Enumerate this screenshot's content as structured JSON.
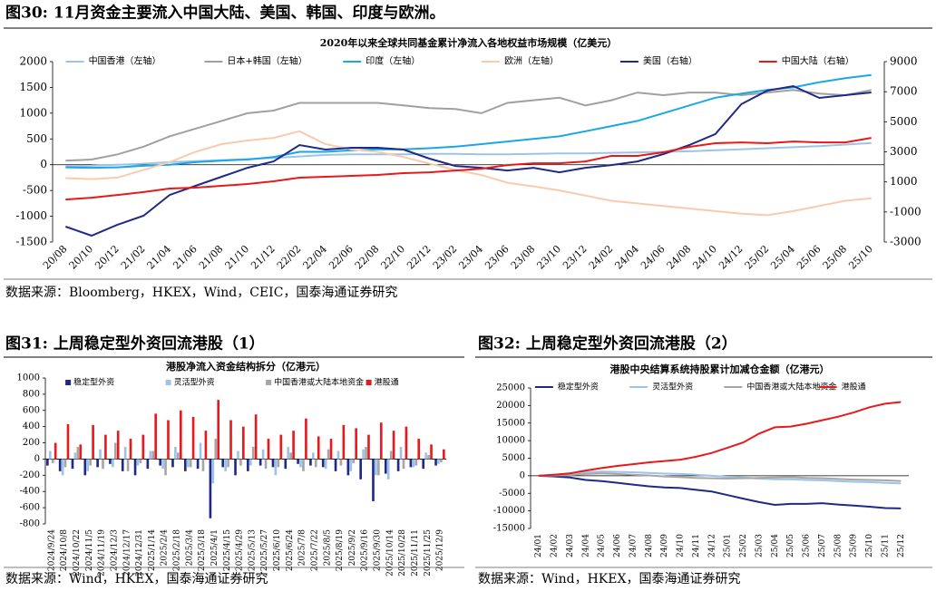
{
  "document": {
    "sections": [
      {
        "heading": "图30:  11月资金主要流入中国大陆、美国、韩国、印度与欧洲。",
        "source": "数据来源：Bloomberg，HKEX，Wind，CEIC，国泰海通证券研究"
      },
      {
        "heading": "图31:  上周稳定型外资回流港股（1）",
        "source": "数据来源：Wind，HKEX，国泰海通证券研究"
      },
      {
        "heading": "图32:  上周稳定型外资回流港股（2）",
        "source": "数据来源：Wind，HKEX，国泰海通证券研究"
      }
    ]
  },
  "chart_data": [
    {
      "type": "line",
      "title": "2020年以来全球共同基金累计净流入各地权益市场规模（亿美元）",
      "categories": [
        "20/08",
        "20/10",
        "20/12",
        "21/02",
        "21/04",
        "21/06",
        "21/08",
        "21/10",
        "21/12",
        "22/02",
        "22/04",
        "22/06",
        "22/08",
        "22/10",
        "22/12",
        "23/02",
        "23/04",
        "23/06",
        "23/08",
        "23/10",
        "23/12",
        "24/02",
        "24/04",
        "24/06",
        "24/08",
        "24/10",
        "24/12",
        "25/02",
        "25/04",
        "25/06",
        "25/08",
        "25/10"
      ],
      "series": [
        {
          "name": "中国香港（左轴）",
          "color": "#9dc3e6",
          "values": [
            -30,
            -20,
            0,
            20,
            50,
            70,
            90,
            110,
            130,
            160,
            190,
            200,
            200,
            200,
            210,
            210,
            200,
            200,
            210,
            220,
            220,
            230,
            240,
            250,
            260,
            280,
            300,
            320,
            340,
            360,
            390,
            420
          ]
        },
        {
          "name": "日本+韩国（左轴）",
          "color": "#a0a0a0",
          "values": [
            80,
            100,
            200,
            350,
            550,
            700,
            850,
            1000,
            1050,
            1200,
            1200,
            1200,
            1200,
            1150,
            1100,
            1080,
            1000,
            1200,
            1250,
            1300,
            1150,
            1250,
            1400,
            1350,
            1400,
            1400,
            1350,
            1400,
            1450,
            1380,
            1350,
            1450
          ]
        },
        {
          "name": "印度（左轴）",
          "color": "#1aa7e6",
          "values": [
            -50,
            -60,
            -50,
            -20,
            0,
            50,
            80,
            100,
            150,
            250,
            250,
            280,
            300,
            300,
            320,
            350,
            400,
            450,
            500,
            550,
            650,
            750,
            850,
            1000,
            1150,
            1300,
            1380,
            1450,
            1500,
            1600,
            1680,
            1740
          ]
        },
        {
          "name": "欧洲（左轴）",
          "color": "#f8cbad",
          "values": [
            -260,
            -280,
            -250,
            -100,
            50,
            250,
            400,
            470,
            520,
            650,
            400,
            300,
            250,
            150,
            20,
            -100,
            -200,
            -350,
            -420,
            -500,
            -600,
            -700,
            -750,
            -800,
            -850,
            -900,
            -950,
            -980,
            -900,
            -800,
            -700,
            -650
          ]
        },
        {
          "name": "美国（右轴）",
          "color": "#1f2a87",
          "axis": "y2",
          "values": [
            -1975,
            -2580,
            -1850,
            -1250,
            130,
            740,
            1340,
            1940,
            2360,
            3450,
            3150,
            3270,
            3270,
            3150,
            2550,
            2060,
            1940,
            1760,
            1940,
            1640,
            1940,
            2120,
            2360,
            2850,
            3450,
            4180,
            6170,
            7070,
            7370,
            6590,
            6770,
            6950
          ]
        },
        {
          "name": "中国大陆（右轴）",
          "color": "#e8191c",
          "axis": "y2",
          "values": [
            -170,
            -50,
            130,
            320,
            560,
            620,
            740,
            860,
            1040,
            1280,
            1340,
            1400,
            1460,
            1580,
            1640,
            1760,
            1880,
            2120,
            2240,
            2240,
            2360,
            2730,
            2730,
            2970,
            3330,
            3570,
            3630,
            3570,
            3690,
            3630,
            3630,
            3930
          ]
        }
      ],
      "ylim": [
        -1500,
        2000
      ],
      "yticks": [
        -1500,
        -1000,
        -500,
        0,
        500,
        1000,
        1500,
        2000
      ],
      "y2lim": [
        -3000,
        9000
      ],
      "y2ticks": [
        -3000,
        -1000,
        1000,
        3000,
        5000,
        7000,
        9000
      ],
      "grid": false
    },
    {
      "type": "bar",
      "title": "港股净流入资金结构拆分（亿港元）",
      "categories": [
        "2024/9/24",
        "2024/10/8",
        "2024/10/22",
        "2024/11/5",
        "2024/11/19",
        "2024/12/3",
        "2024/12/17",
        "2024/12/31",
        "2025/1/14",
        "2025/2/4",
        "2025/2/18",
        "2025/3/4",
        "2025/3/18",
        "2025/4/1",
        "2025/4/15",
        "2025/4/29",
        "2025/5/13",
        "2025/5/27",
        "2025/6/10",
        "2025/6/24",
        "2025/7/8",
        "2025/7/22",
        "2025/8/5",
        "2025/8/19",
        "2025/9/2",
        "2025/9/16",
        "2025/9/30",
        "2025/10/14",
        "2025/10/28",
        "2025/11/11",
        "2025/11/25",
        "2025/12/9"
      ],
      "series": [
        {
          "name": "稳定型外资",
          "color": "#1f2a87",
          "values": [
            -80,
            -150,
            -120,
            -200,
            -100,
            -60,
            -150,
            -200,
            -120,
            -80,
            -100,
            -150,
            -120,
            -730,
            -100,
            -200,
            -150,
            -80,
            -100,
            -120,
            -60,
            -80,
            -100,
            -150,
            -200,
            -250,
            -520,
            -180,
            -150,
            -100,
            -120,
            -80
          ]
        },
        {
          "name": "灵活型外资",
          "color": "#9dc3e6",
          "values": [
            100,
            -200,
            80,
            -150,
            120,
            -100,
            150,
            -80,
            100,
            -120,
            150,
            -100,
            200,
            -300,
            -150,
            100,
            -80,
            120,
            -200,
            150,
            -100,
            80,
            -120,
            100,
            -150,
            120,
            -200,
            -250,
            150,
            -100,
            80,
            -60
          ]
        },
        {
          "name": "中国香港或大陆本地资金",
          "color": "#a6a6a6",
          "values": [
            -50,
            -100,
            150,
            -80,
            -120,
            200,
            -150,
            -50,
            100,
            -200,
            80,
            -100,
            -150,
            250,
            -100,
            -80,
            150,
            -120,
            -100,
            80,
            -150,
            -100,
            120,
            -80,
            -50,
            150,
            -200,
            100,
            -120,
            -80,
            50,
            -40
          ]
        },
        {
          "name": "港股通",
          "color": "#e8191c",
          "values": [
            200,
            430,
            180,
            420,
            300,
            350,
            250,
            300,
            560,
            480,
            600,
            520,
            350,
            730,
            480,
            400,
            550,
            250,
            300,
            350,
            500,
            280,
            250,
            420,
            380,
            300,
            450,
            350,
            400,
            250,
            180,
            120
          ]
        }
      ],
      "ylim": [
        -800,
        1000
      ],
      "yticks": [
        -800,
        -600,
        -400,
        -200,
        0,
        200,
        400,
        600,
        800,
        1000
      ],
      "grid": false
    },
    {
      "type": "line",
      "title": "港股中央结算系统持股累计加减仓金额（亿港元）",
      "categories": [
        "24/01",
        "24/02",
        "24/03",
        "24/04",
        "24/05",
        "24/06",
        "24/07",
        "24/08",
        "24/09",
        "24/10",
        "24/11",
        "24/12",
        "25/01",
        "25/02",
        "25/03",
        "25/04",
        "25/05",
        "25/06",
        "25/07",
        "25/08",
        "25/09",
        "25/10",
        "25/11",
        "25/12"
      ],
      "series": [
        {
          "name": "稳定型外资",
          "color": "#1f2a87",
          "values": [
            0,
            -200,
            -500,
            -1200,
            -1500,
            -2000,
            -2500,
            -3000,
            -3300,
            -3500,
            -4000,
            -4500,
            -5500,
            -6500,
            -7500,
            -8300,
            -8000,
            -8000,
            -7800,
            -8200,
            -8500,
            -8800,
            -9200,
            -9300
          ]
        },
        {
          "name": "灵活型外资",
          "color": "#9dc3e6",
          "values": [
            0,
            300,
            700,
            1000,
            1200,
            1100,
            1000,
            800,
            600,
            500,
            300,
            0,
            -300,
            -500,
            -800,
            -1000,
            -1000,
            -1200,
            -1300,
            -1500,
            -1700,
            -1800,
            -2000,
            -2200
          ]
        },
        {
          "name": "中国香港或大陆本地资金",
          "color": "#a6a6a6",
          "values": [
            0,
            100,
            200,
            500,
            700,
            500,
            300,
            100,
            -200,
            -400,
            -600,
            -700,
            -800,
            -700,
            -600,
            -500,
            -400,
            -600,
            -700,
            -900,
            -1100,
            -1200,
            -1300,
            -1500
          ]
        },
        {
          "name": "港股通",
          "color": "#e8191c",
          "values": [
            0,
            300,
            700,
            1500,
            2200,
            2800,
            3300,
            3800,
            4200,
            4600,
            5400,
            6500,
            8000,
            9500,
            12000,
            13800,
            14000,
            14800,
            15800,
            16800,
            18000,
            19500,
            20500,
            21000
          ]
        }
      ],
      "ylim": [
        -15000,
        25000
      ],
      "yticks": [
        -15000,
        -10000,
        -5000,
        0,
        5000,
        10000,
        15000,
        20000,
        25000
      ],
      "grid": false
    }
  ]
}
